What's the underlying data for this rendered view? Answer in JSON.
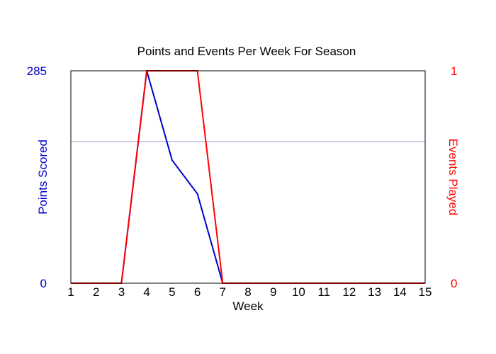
{
  "chart_data": {
    "type": "line",
    "title": "Points and Events Per Week For Season",
    "xlabel": "Week",
    "x": [
      1,
      2,
      3,
      4,
      5,
      6,
      7,
      8,
      9,
      10,
      11,
      12,
      13,
      14,
      15
    ],
    "xlim": [
      1,
      15
    ],
    "series": [
      {
        "axis": "left",
        "color": "#0000cc",
        "values": [
          0,
          0,
          0,
          285,
          165,
          120,
          0,
          0,
          0,
          0,
          0,
          0,
          0,
          0,
          0
        ]
      },
      {
        "axis": "right",
        "color": "#ff0000",
        "values": [
          0,
          0,
          0,
          1,
          1,
          1,
          0,
          0,
          0,
          0,
          0,
          0,
          0,
          0,
          0
        ]
      }
    ],
    "y_left": {
      "label": "Points Scored",
      "color": "#0000cc",
      "range": [
        0,
        285
      ],
      "ticks": [
        "0",
        "285"
      ]
    },
    "y_right": {
      "label": "Events Played",
      "color": "#ff0000",
      "range": [
        0,
        1
      ],
      "ticks": [
        "0",
        "1"
      ]
    },
    "reference_line": {
      "axis": "left",
      "value": 190,
      "color": "#9999cc"
    }
  }
}
